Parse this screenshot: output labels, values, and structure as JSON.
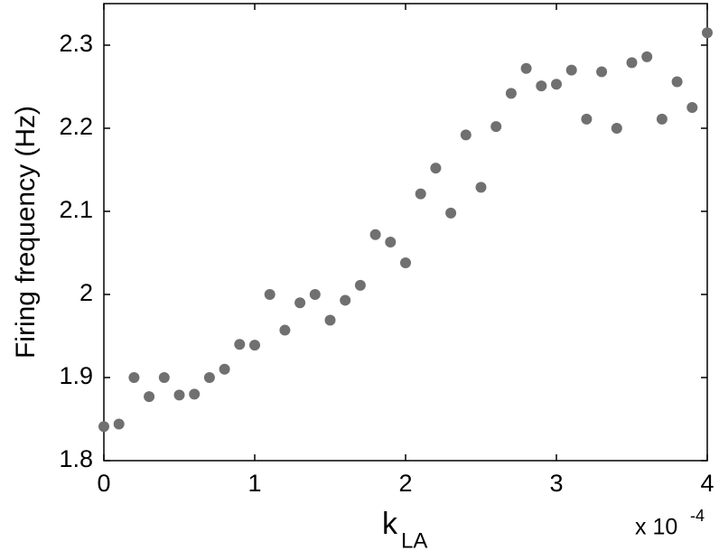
{
  "chart_data": {
    "type": "scatter",
    "xlabel": "k",
    "xlabel_sub": "LA",
    "ylabel": "Firing frequency (Hz)",
    "x_multiplier": "x 10",
    "x_multiplier_exp": "-4",
    "color": "#707070",
    "xlim": [
      0,
      4
    ],
    "xticks": [
      0,
      1,
      2,
      3,
      4
    ],
    "ylim": [
      1.8,
      2.35
    ],
    "yticks": [
      1.8,
      1.9,
      2,
      2.1,
      2.2,
      2.3
    ],
    "x": [
      0,
      0.1,
      0.2,
      0.3,
      0.4,
      0.5,
      0.6,
      0.7,
      0.8,
      0.9,
      1.0,
      1.1,
      1.2,
      1.3,
      1.4,
      1.5,
      1.6,
      1.7,
      1.8,
      1.9,
      2.0,
      2.1,
      2.2,
      2.3,
      2.4,
      2.5,
      2.6,
      2.7,
      2.8,
      2.9,
      3.0,
      3.1,
      3.2,
      3.3,
      3.4,
      3.5,
      3.6,
      3.7,
      3.8,
      3.9,
      4.0
    ],
    "values": [
      1.841,
      1.844,
      1.9,
      1.877,
      1.9,
      1.879,
      1.88,
      1.9,
      1.91,
      1.94,
      1.939,
      2.0,
      1.957,
      1.99,
      2.0,
      1.969,
      1.993,
      2.011,
      2.072,
      2.063,
      2.038,
      2.121,
      2.152,
      2.098,
      2.192,
      2.129,
      2.202,
      2.242,
      2.272,
      2.251,
      2.253,
      2.27,
      2.211,
      2.268,
      2.2,
      2.279,
      2.286,
      2.211,
      2.256,
      2.225,
      2.315
    ]
  }
}
